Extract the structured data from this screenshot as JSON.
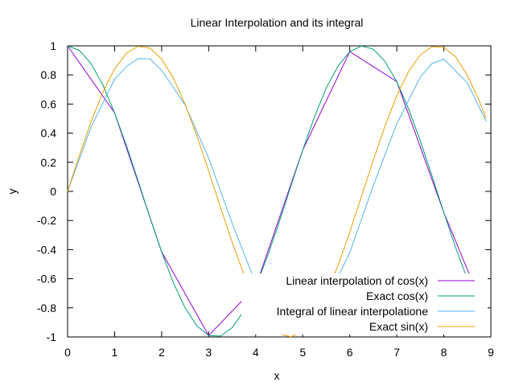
{
  "chart_data": {
    "type": "line",
    "title": "Linear Interpolation and its integral",
    "xlabel": "x",
    "ylabel": "y",
    "xlim": [
      0,
      9
    ],
    "ylim": [
      -1,
      1
    ],
    "xticks": [
      0,
      1,
      2,
      3,
      4,
      5,
      6,
      7,
      8,
      9
    ],
    "yticks": [
      -1,
      -0.8,
      -0.6,
      -0.4,
      -0.2,
      0,
      0.2,
      0.4,
      0.6,
      0.8,
      1
    ],
    "xtick_labels": [
      "0",
      "1",
      "2",
      "3",
      "4",
      "5",
      "6",
      "7",
      "8",
      "9"
    ],
    "ytick_labels": [
      "-1",
      "-0.8",
      "-0.6",
      "-0.4",
      "-0.2",
      "0",
      "0.2",
      "0.4",
      "0.6",
      "0.8",
      "1"
    ],
    "grid": false,
    "legend_position": "bottom-right",
    "series": [
      {
        "name": "Linear interpolation of cos(x)",
        "color": "#9400d3",
        "x": [
          0,
          1,
          2,
          3,
          4,
          5,
          6,
          7,
          8,
          8.9
        ],
        "y": [
          1,
          0.54,
          -0.416,
          -0.99,
          -0.654,
          0.284,
          0.96,
          0.754,
          -0.146,
          -0.85
        ]
      },
      {
        "name": "Exact cos(x)",
        "color": "#009e73",
        "x": [
          0,
          0.25,
          0.5,
          0.75,
          1,
          1.25,
          1.5,
          1.75,
          2,
          2.25,
          2.5,
          2.75,
          3,
          3.25,
          3.5,
          3.75,
          4,
          4.25,
          4.5,
          4.75,
          5,
          5.25,
          5.5,
          5.75,
          6,
          6.25,
          6.5,
          6.75,
          7,
          7.25,
          7.5,
          7.75,
          8,
          8.25,
          8.5,
          8.75,
          8.9
        ],
        "y": [
          1,
          0.969,
          0.878,
          0.732,
          0.54,
          0.315,
          0.071,
          -0.178,
          -0.416,
          -0.628,
          -0.801,
          -0.924,
          -0.99,
          -0.994,
          -0.936,
          -0.82,
          -0.654,
          -0.446,
          -0.211,
          0.038,
          0.284,
          0.512,
          0.709,
          0.861,
          0.96,
          0.999,
          0.977,
          0.893,
          0.754,
          0.568,
          0.347,
          0.106,
          -0.146,
          -0.387,
          -0.602,
          -0.78,
          -0.86
        ]
      },
      {
        "name": "Integral of linear interpolatione",
        "color": "#56b4e9",
        "x": [
          0,
          0.5,
          1,
          1.25,
          1.5,
          1.75,
          2,
          2.5,
          3,
          3.5,
          4,
          4.5,
          4.75,
          5,
          5.5,
          6,
          6.5,
          7,
          7.5,
          7.75,
          8,
          8.5,
          8.9
        ],
        "y": [
          0,
          0.442,
          0.77,
          0.858,
          0.912,
          0.91,
          0.832,
          0.593,
          0.229,
          -0.22,
          -0.632,
          -0.87,
          -0.912,
          -0.904,
          -0.754,
          -0.42,
          0.04,
          0.465,
          0.785,
          0.878,
          0.909,
          0.746,
          0.48
        ]
      },
      {
        "name": "Exact sin(x)",
        "color": "#e69f00",
        "x": [
          0,
          0.25,
          0.5,
          0.75,
          1,
          1.25,
          1.5,
          1.75,
          2,
          2.25,
          2.5,
          2.75,
          3,
          3.25,
          3.5,
          3.75,
          4,
          4.25,
          4.5,
          4.75,
          5,
          5.25,
          5.5,
          5.75,
          6,
          6.25,
          6.5,
          6.75,
          7,
          7.25,
          7.5,
          7.75,
          8,
          8.25,
          8.5,
          8.75,
          8.9
        ],
        "y": [
          0,
          0.247,
          0.479,
          0.682,
          0.841,
          0.949,
          0.997,
          0.984,
          0.909,
          0.778,
          0.598,
          0.382,
          0.141,
          -0.108,
          -0.351,
          -0.572,
          -0.757,
          -0.895,
          -0.978,
          -0.999,
          -0.959,
          -0.859,
          -0.706,
          -0.508,
          -0.279,
          -0.033,
          0.215,
          0.45,
          0.657,
          0.823,
          0.938,
          0.994,
          0.989,
          0.925,
          0.798,
          0.624,
          0.501
        ]
      }
    ]
  }
}
